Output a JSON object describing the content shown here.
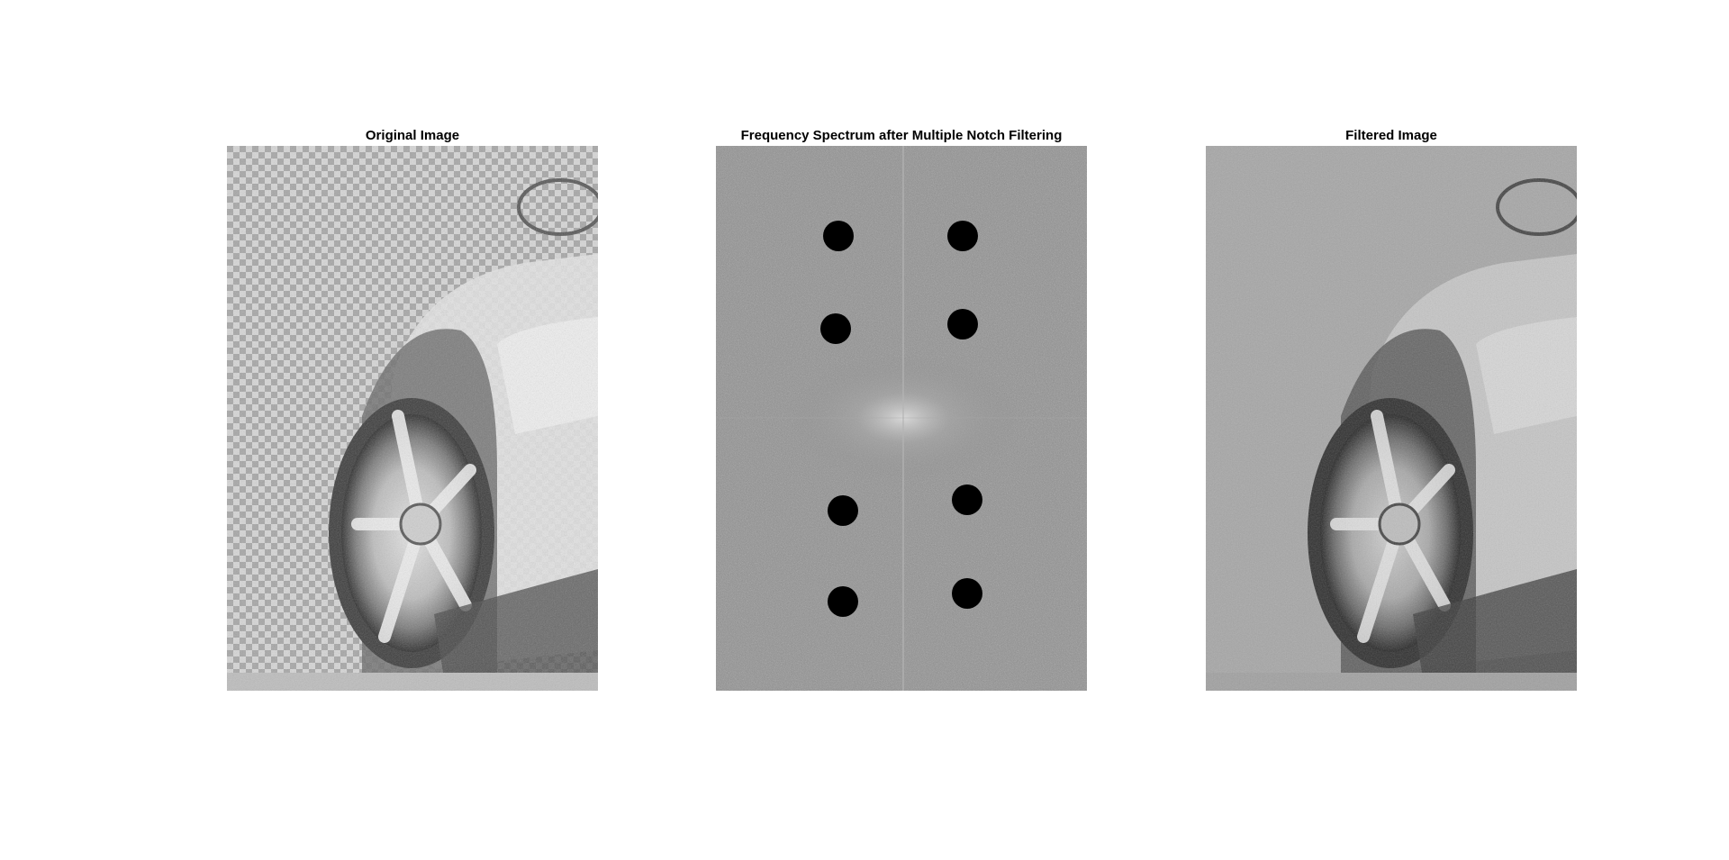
{
  "figure": {
    "panels": [
      {
        "title": "Original Image",
        "content": "car-wheel-photo-periodic-noise"
      },
      {
        "title": "Frequency Spectrum after Multiple Notch Filtering",
        "content": "fft-magnitude-spectrum",
        "notch_count": 8
      },
      {
        "title": "Filtered Image",
        "content": "car-wheel-photo-filtered"
      }
    ],
    "colors": {
      "background": "#ffffff",
      "title_text": "#000000",
      "notch_fill": "#000000",
      "spectrum_base": "#8f8f8f"
    }
  }
}
